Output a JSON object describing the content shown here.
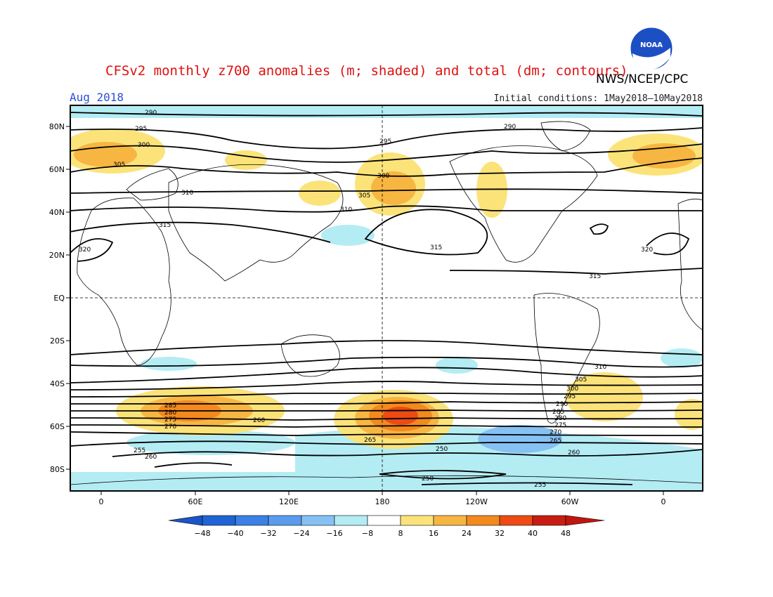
{
  "title": "CFSv2 monthly z700 anomalies (m; shaded) and total (dm; contours)",
  "agency": "NWS/NCEP/CPC",
  "logo_text": "NOAA",
  "period": "Aug 2018",
  "initial_conditions": "Initial conditions: 1May2018–10May2018",
  "lat_labels": [
    "80N",
    "60N",
    "40N",
    "20N",
    "EQ",
    "20S",
    "40S",
    "60S",
    "80S"
  ],
  "lon_labels": [
    "0",
    "60E",
    "120E",
    "180",
    "120W",
    "60W",
    "0"
  ],
  "colorbar": {
    "ticks": [
      "−48",
      "−40",
      "−32",
      "−24",
      "−16",
      "−8",
      "8",
      "16",
      "24",
      "32",
      "40",
      "48"
    ],
    "colors": [
      "#1f64d4",
      "#3b80e4",
      "#5a9cee",
      "#86c1f3",
      "#b4ecf4",
      "#ffffff",
      "#fbe37a",
      "#f7b642",
      "#f28a1e",
      "#ed4a14",
      "#c81d12"
    ],
    "low_color": "#1a55c8",
    "high_color": "#c0160e"
  },
  "contour_labels": [
    "290",
    "295",
    "300",
    "305",
    "310",
    "315",
    "320",
    "315",
    "310",
    "305",
    "300",
    "295",
    "290",
    "285",
    "280",
    "275",
    "270",
    "265",
    "260",
    "255",
    "250",
    "320",
    "315",
    "310",
    "305",
    "300",
    "295",
    "290",
    "285",
    "280",
    "275",
    "270",
    "265",
    "260",
    "255",
    "250",
    "260"
  ]
}
